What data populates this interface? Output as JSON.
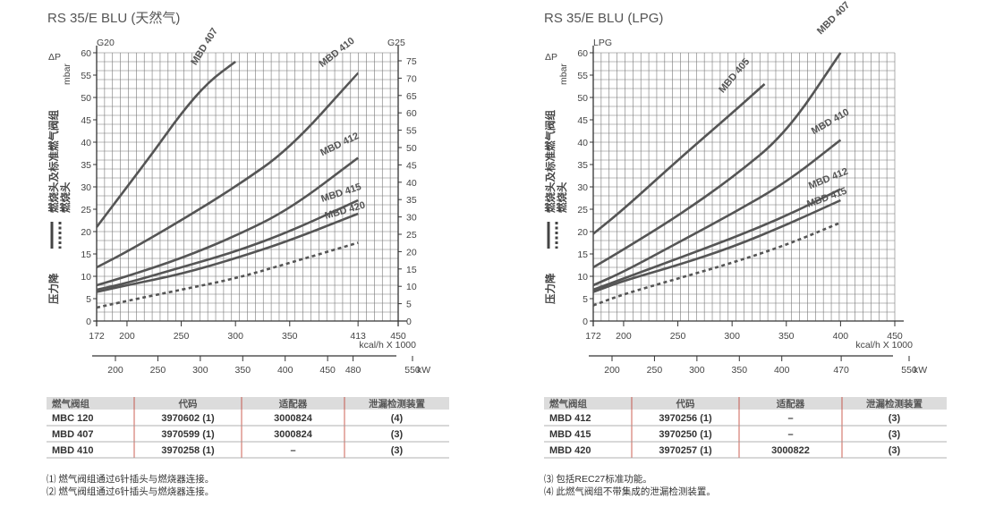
{
  "chart_data": [
    {
      "type": "line",
      "title": "RS 35/E BLU (天然气)",
      "y_left_label": "mbar",
      "y_left_symbol": "ΔP",
      "y_left_top": "G20",
      "y_right_top": "G25",
      "y_side_label_lines": [
        "燃烧头及标准燃气阀组",
        "燃烧头"
      ],
      "y_side_label_bottom": "压力降",
      "ylim": [
        0,
        60
      ],
      "y_ticks": [
        0,
        5,
        10,
        15,
        20,
        25,
        30,
        35,
        40,
        45,
        50,
        55,
        60
      ],
      "y_right_ticks": [
        0,
        5,
        10,
        15,
        20,
        25,
        30,
        35,
        40,
        45,
        50,
        55,
        60,
        65,
        70,
        75
      ],
      "xlim": [
        172,
        450
      ],
      "x_ticks": [
        172,
        200,
        250,
        300,
        350,
        413,
        450
      ],
      "x_unit": "kcal/h X 1000",
      "kw_ticks": [
        200,
        250,
        300,
        350,
        400,
        450,
        480,
        550
      ],
      "kw_unit": "kW",
      "series": [
        {
          "name": "MBD 407",
          "style": "solid",
          "x": [
            172,
            200,
            225,
            250,
            275,
            300
          ],
          "y": [
            21,
            30,
            38,
            46.5,
            53.5,
            58
          ]
        },
        {
          "name": "MBD 410",
          "style": "solid",
          "x": [
            172,
            200,
            250,
            300,
            350,
            413
          ],
          "y": [
            12,
            15.5,
            22.5,
            30,
            38.5,
            55.5
          ]
        },
        {
          "name": "MBD 412",
          "style": "solid",
          "x": [
            172,
            200,
            250,
            300,
            350,
            413
          ],
          "y": [
            8,
            10,
            14,
            19,
            25,
            36.5
          ]
        },
        {
          "name": "MBD 415",
          "style": "solid",
          "x": [
            172,
            200,
            250,
            300,
            350,
            413
          ],
          "y": [
            7,
            8.5,
            12,
            15.5,
            20,
            27
          ]
        },
        {
          "name": "MBD 420",
          "style": "solid",
          "x": [
            172,
            200,
            250,
            300,
            350,
            413
          ],
          "y": [
            6.5,
            8,
            10.5,
            14,
            18,
            24
          ]
        },
        {
          "name": "",
          "style": "dashed",
          "x": [
            172,
            200,
            250,
            300,
            350,
            413
          ],
          "y": [
            3,
            4.5,
            7,
            9.5,
            13,
            17.5
          ]
        }
      ]
    },
    {
      "type": "line",
      "title": "RS 35/E BLU (LPG)",
      "y_left_label": "mbar",
      "y_left_symbol": "ΔP",
      "y_left_top": "LPG",
      "y_side_label_lines": [
        "燃烧头及标准燃气阀组",
        "燃烧头"
      ],
      "y_side_label_bottom": "压力降",
      "ylim": [
        0,
        60
      ],
      "y_ticks": [
        0,
        5,
        10,
        15,
        20,
        25,
        30,
        35,
        40,
        45,
        50,
        55,
        60
      ],
      "xlim": [
        172,
        450
      ],
      "x_ticks": [
        172,
        200,
        250,
        300,
        350,
        400,
        450
      ],
      "x_unit": "kcal/h X 1000",
      "kw_ticks": [
        200,
        250,
        300,
        350,
        400,
        470,
        550
      ],
      "kw_unit": "kW",
      "series": [
        {
          "name": "MBD 405",
          "style": "solid",
          "x": [
            172,
            200,
            250,
            300,
            330
          ],
          "y": [
            19.5,
            25,
            36,
            46.5,
            53
          ]
        },
        {
          "name": "MBD 407",
          "style": "solid",
          "x": [
            172,
            200,
            250,
            300,
            350,
            400
          ],
          "y": [
            12,
            16,
            23.5,
            32,
            42,
            60
          ]
        },
        {
          "name": "MBD 410",
          "style": "solid",
          "x": [
            172,
            200,
            250,
            300,
            350,
            400
          ],
          "y": [
            8,
            11,
            17.5,
            24,
            31,
            40.5
          ]
        },
        {
          "name": "MBD 412",
          "style": "solid",
          "x": [
            172,
            200,
            250,
            300,
            350,
            400
          ],
          "y": [
            7,
            9.5,
            14,
            18.5,
            23.5,
            29.5
          ]
        },
        {
          "name": "MBD 415",
          "style": "solid",
          "x": [
            172,
            200,
            250,
            300,
            350,
            400
          ],
          "y": [
            6.5,
            9,
            12.5,
            16.5,
            21.5,
            27
          ]
        },
        {
          "name": "",
          "style": "dashed",
          "x": [
            172,
            200,
            250,
            300,
            350,
            400
          ],
          "y": [
            3.5,
            6,
            9.5,
            13,
            17,
            22
          ]
        }
      ]
    }
  ],
  "tables": [
    {
      "headers": [
        "燃气阀组",
        "代码",
        "适配器",
        "泄漏检测装置"
      ],
      "rows": [
        [
          "MBC 120",
          "3970602 (1)",
          "3000824",
          "(4)"
        ],
        [
          "MBD 407",
          "3970599 (1)",
          "3000824",
          "(3)"
        ],
        [
          "MBD 410",
          "3970258 (1)",
          "–",
          "(3)"
        ]
      ],
      "notes": [
        "⑴ 燃气阀组通过6针插头与燃烧器连接。",
        "⑵ 燃气阀组通过6针插头与燃烧器连接。"
      ]
    },
    {
      "headers": [
        "燃气阀组",
        "代码",
        "适配器",
        "泄漏检测装置"
      ],
      "rows": [
        [
          "MBD 412",
          "3970256 (1)",
          "–",
          "(3)"
        ],
        [
          "MBD 415",
          "3970250 (1)",
          "–",
          "(3)"
        ],
        [
          "MBD 420",
          "3970257 (1)",
          "3000822",
          "(3)"
        ]
      ],
      "notes": [
        "⑶ 包括REC27标准功能。",
        "⑷ 此燃气阀组不带集成的泄漏检测装置。"
      ]
    }
  ],
  "colors": {
    "curve": "#555555",
    "grid": "#777777",
    "table_header_bg": "#dcdcdc",
    "divider_red": "#c0392b"
  }
}
